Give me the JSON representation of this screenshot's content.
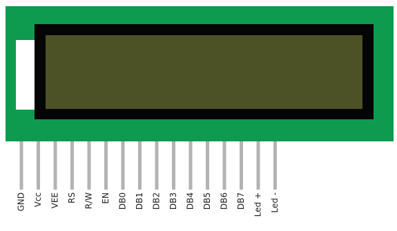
{
  "module": {
    "pcb_color": "#0e9a4f",
    "bezel_color": "#050505",
    "screen_color": "#4d5226",
    "tab_color": "#ffffff",
    "pin_color": "#b3b3b3"
  },
  "pins": [
    {
      "label": "GND"
    },
    {
      "label": "Vcc"
    },
    {
      "label": "VEE"
    },
    {
      "label": "RS"
    },
    {
      "label": "R/W"
    },
    {
      "label": "EN"
    },
    {
      "label": "DB0"
    },
    {
      "label": "DB1"
    },
    {
      "label": "DB2"
    },
    {
      "label": "DB3"
    },
    {
      "label": "DB4"
    },
    {
      "label": "DB5"
    },
    {
      "label": "DB6"
    },
    {
      "label": "DB7"
    },
    {
      "label": "Led +"
    },
    {
      "label": "Led -"
    }
  ]
}
